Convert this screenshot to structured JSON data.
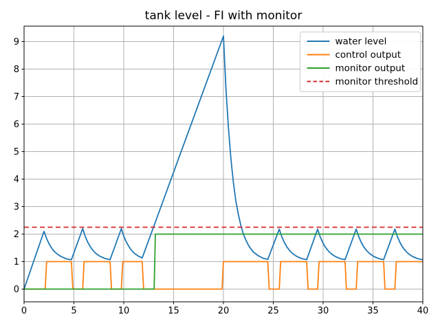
{
  "figure": {
    "title": "tank level - FI with monitor",
    "background": "#ffffff"
  },
  "chart_data": {
    "type": "line",
    "title": "tank level - FI with monitor",
    "xlabel": "",
    "ylabel": "",
    "xlim": [
      0,
      40
    ],
    "ylim": [
      -0.46,
      9.56
    ],
    "xticks": [
      0,
      5,
      10,
      15,
      20,
      25,
      30,
      35,
      40
    ],
    "yticks": [
      0,
      1,
      2,
      3,
      4,
      5,
      6,
      7,
      8,
      9
    ],
    "grid": true,
    "grid_color": "#b0b0b0",
    "spine_color": "#000000",
    "legend_position": "upper right",
    "monitor_threshold_value": 2.25,
    "series": [
      {
        "name": "water level",
        "color": "#1f77b4",
        "style": "solid",
        "points": [
          [
            0,
            0
          ],
          [
            2.0,
            2.1
          ],
          [
            2.25,
            1.85
          ],
          [
            2.5,
            1.65
          ],
          [
            2.75,
            1.5
          ],
          [
            3.0,
            1.38
          ],
          [
            3.25,
            1.3
          ],
          [
            3.5,
            1.23
          ],
          [
            3.75,
            1.18
          ],
          [
            4.0,
            1.14
          ],
          [
            4.25,
            1.1
          ],
          [
            4.5,
            1.08
          ],
          [
            4.75,
            1.07
          ],
          [
            5.88,
            2.2
          ],
          [
            6.13,
            1.92
          ],
          [
            6.38,
            1.71
          ],
          [
            6.63,
            1.55
          ],
          [
            6.88,
            1.42
          ],
          [
            7.13,
            1.32
          ],
          [
            7.38,
            1.25
          ],
          [
            7.63,
            1.19
          ],
          [
            7.88,
            1.15
          ],
          [
            8.13,
            1.11
          ],
          [
            8.38,
            1.09
          ],
          [
            8.63,
            1.07
          ],
          [
            9.76,
            2.2
          ],
          [
            10.01,
            1.92
          ],
          [
            10.26,
            1.71
          ],
          [
            10.51,
            1.55
          ],
          [
            10.76,
            1.42
          ],
          [
            11.01,
            1.32
          ],
          [
            11.26,
            1.25
          ],
          [
            11.51,
            1.19
          ],
          [
            11.76,
            1.15
          ],
          [
            11.85,
            1.13
          ],
          [
            20.0,
            9.2
          ],
          [
            20.25,
            7.3
          ],
          [
            20.5,
            5.85
          ],
          [
            20.75,
            4.73
          ],
          [
            21.0,
            3.87
          ],
          [
            21.25,
            3.2
          ],
          [
            21.5,
            2.7
          ],
          [
            21.75,
            2.31
          ],
          [
            22.0,
            2.0
          ],
          [
            22.25,
            1.78
          ],
          [
            22.5,
            1.6
          ],
          [
            22.75,
            1.46
          ],
          [
            23.0,
            1.35
          ],
          [
            23.5,
            1.21
          ],
          [
            24.0,
            1.12
          ],
          [
            24.45,
            1.08
          ],
          [
            25.6,
            2.18
          ],
          [
            25.85,
            1.91
          ],
          [
            26.1,
            1.7
          ],
          [
            26.35,
            1.54
          ],
          [
            26.6,
            1.42
          ],
          [
            26.85,
            1.32
          ],
          [
            27.1,
            1.25
          ],
          [
            27.35,
            1.19
          ],
          [
            27.6,
            1.15
          ],
          [
            27.85,
            1.11
          ],
          [
            28.1,
            1.09
          ],
          [
            28.35,
            1.07
          ],
          [
            29.45,
            2.18
          ],
          [
            29.7,
            1.91
          ],
          [
            29.95,
            1.7
          ],
          [
            30.2,
            1.54
          ],
          [
            30.45,
            1.42
          ],
          [
            30.7,
            1.32
          ],
          [
            30.95,
            1.25
          ],
          [
            31.2,
            1.19
          ],
          [
            31.45,
            1.15
          ],
          [
            31.7,
            1.11
          ],
          [
            31.95,
            1.09
          ],
          [
            32.2,
            1.07
          ],
          [
            33.32,
            2.18
          ],
          [
            33.57,
            1.91
          ],
          [
            33.82,
            1.7
          ],
          [
            34.07,
            1.54
          ],
          [
            34.32,
            1.42
          ],
          [
            34.57,
            1.32
          ],
          [
            34.82,
            1.25
          ],
          [
            35.07,
            1.19
          ],
          [
            35.32,
            1.15
          ],
          [
            35.57,
            1.11
          ],
          [
            35.82,
            1.09
          ],
          [
            36.07,
            1.07
          ],
          [
            37.2,
            2.18
          ],
          [
            37.45,
            1.91
          ],
          [
            37.7,
            1.7
          ],
          [
            37.95,
            1.54
          ],
          [
            38.2,
            1.42
          ],
          [
            38.45,
            1.32
          ],
          [
            38.7,
            1.25
          ],
          [
            38.95,
            1.19
          ],
          [
            39.2,
            1.15
          ],
          [
            39.45,
            1.11
          ],
          [
            39.7,
            1.09
          ],
          [
            40.0,
            1.07
          ]
        ]
      },
      {
        "name": "control output",
        "color": "#ff7f0e",
        "style": "solid",
        "points": [
          [
            0,
            0
          ],
          [
            2.12,
            0
          ],
          [
            2.26,
            1
          ],
          [
            4.75,
            1
          ],
          [
            4.89,
            0
          ],
          [
            5.88,
            0
          ],
          [
            6.02,
            1
          ],
          [
            8.63,
            1
          ],
          [
            8.77,
            0
          ],
          [
            9.76,
            0
          ],
          [
            9.9,
            1
          ],
          [
            11.85,
            1
          ],
          [
            11.99,
            0
          ],
          [
            19.86,
            0
          ],
          [
            20.0,
            1
          ],
          [
            24.45,
            1
          ],
          [
            24.59,
            0
          ],
          [
            25.6,
            0
          ],
          [
            25.74,
            1
          ],
          [
            28.35,
            1
          ],
          [
            28.49,
            0
          ],
          [
            29.45,
            0
          ],
          [
            29.59,
            1
          ],
          [
            32.2,
            1
          ],
          [
            32.34,
            0
          ],
          [
            33.32,
            0
          ],
          [
            33.46,
            1
          ],
          [
            36.07,
            1
          ],
          [
            36.21,
            0
          ],
          [
            37.2,
            0
          ],
          [
            37.34,
            1
          ],
          [
            40,
            1
          ]
        ]
      },
      {
        "name": "monitor output",
        "color": "#2ca02c",
        "style": "solid",
        "points": [
          [
            0,
            0
          ],
          [
            13.05,
            0
          ],
          [
            13.17,
            2
          ],
          [
            40,
            2
          ]
        ]
      },
      {
        "name": "monitor threshold",
        "color": "#d62728",
        "style": "dashed",
        "points": [
          [
            0,
            2.25
          ],
          [
            40,
            2.25
          ]
        ]
      }
    ],
    "legend": {
      "labels": [
        "water level",
        "control output",
        "monitor output",
        "monitor threshold"
      ]
    }
  }
}
